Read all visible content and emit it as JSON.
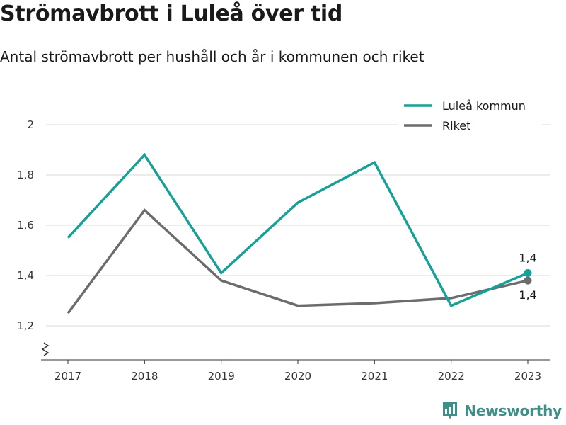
{
  "header": {
    "title": "Strömavbrott i Luleå över tid",
    "subtitle": "Antal strömavbrott per hushåll och år i kommunen och riket"
  },
  "brand": {
    "name": "Newsworthy",
    "icon": "bar-chart-logo-icon",
    "color": "#3d8f89"
  },
  "chart_data": {
    "type": "line",
    "title": "Strömavbrott i Luleå över tid",
    "subtitle": "Antal strömavbrott per hushåll och år i kommunen och riket",
    "xlabel": "",
    "ylabel": "",
    "x": [
      "2017",
      "2018",
      "2019",
      "2020",
      "2021",
      "2022",
      "2023"
    ],
    "series": [
      {
        "name": "Luleå kommun",
        "color": "#17a097",
        "values": [
          1.55,
          1.88,
          1.41,
          1.69,
          1.85,
          1.28,
          1.41
        ]
      },
      {
        "name": "Riket",
        "color": "#6b6b70",
        "values": [
          1.25,
          1.66,
          1.38,
          1.28,
          1.29,
          1.31,
          1.38
        ]
      }
    ],
    "ylim": [
      1.2,
      2.0
    ],
    "yticks": [
      1.2,
      1.4,
      1.6,
      1.8,
      2.0
    ],
    "ytick_labels": [
      "1,2",
      "1,4",
      "1,6",
      "1,8",
      "2"
    ],
    "axis_break": true,
    "grid": true,
    "legend_position": "top-right",
    "end_labels": [
      "1,4",
      "1,4"
    ]
  }
}
